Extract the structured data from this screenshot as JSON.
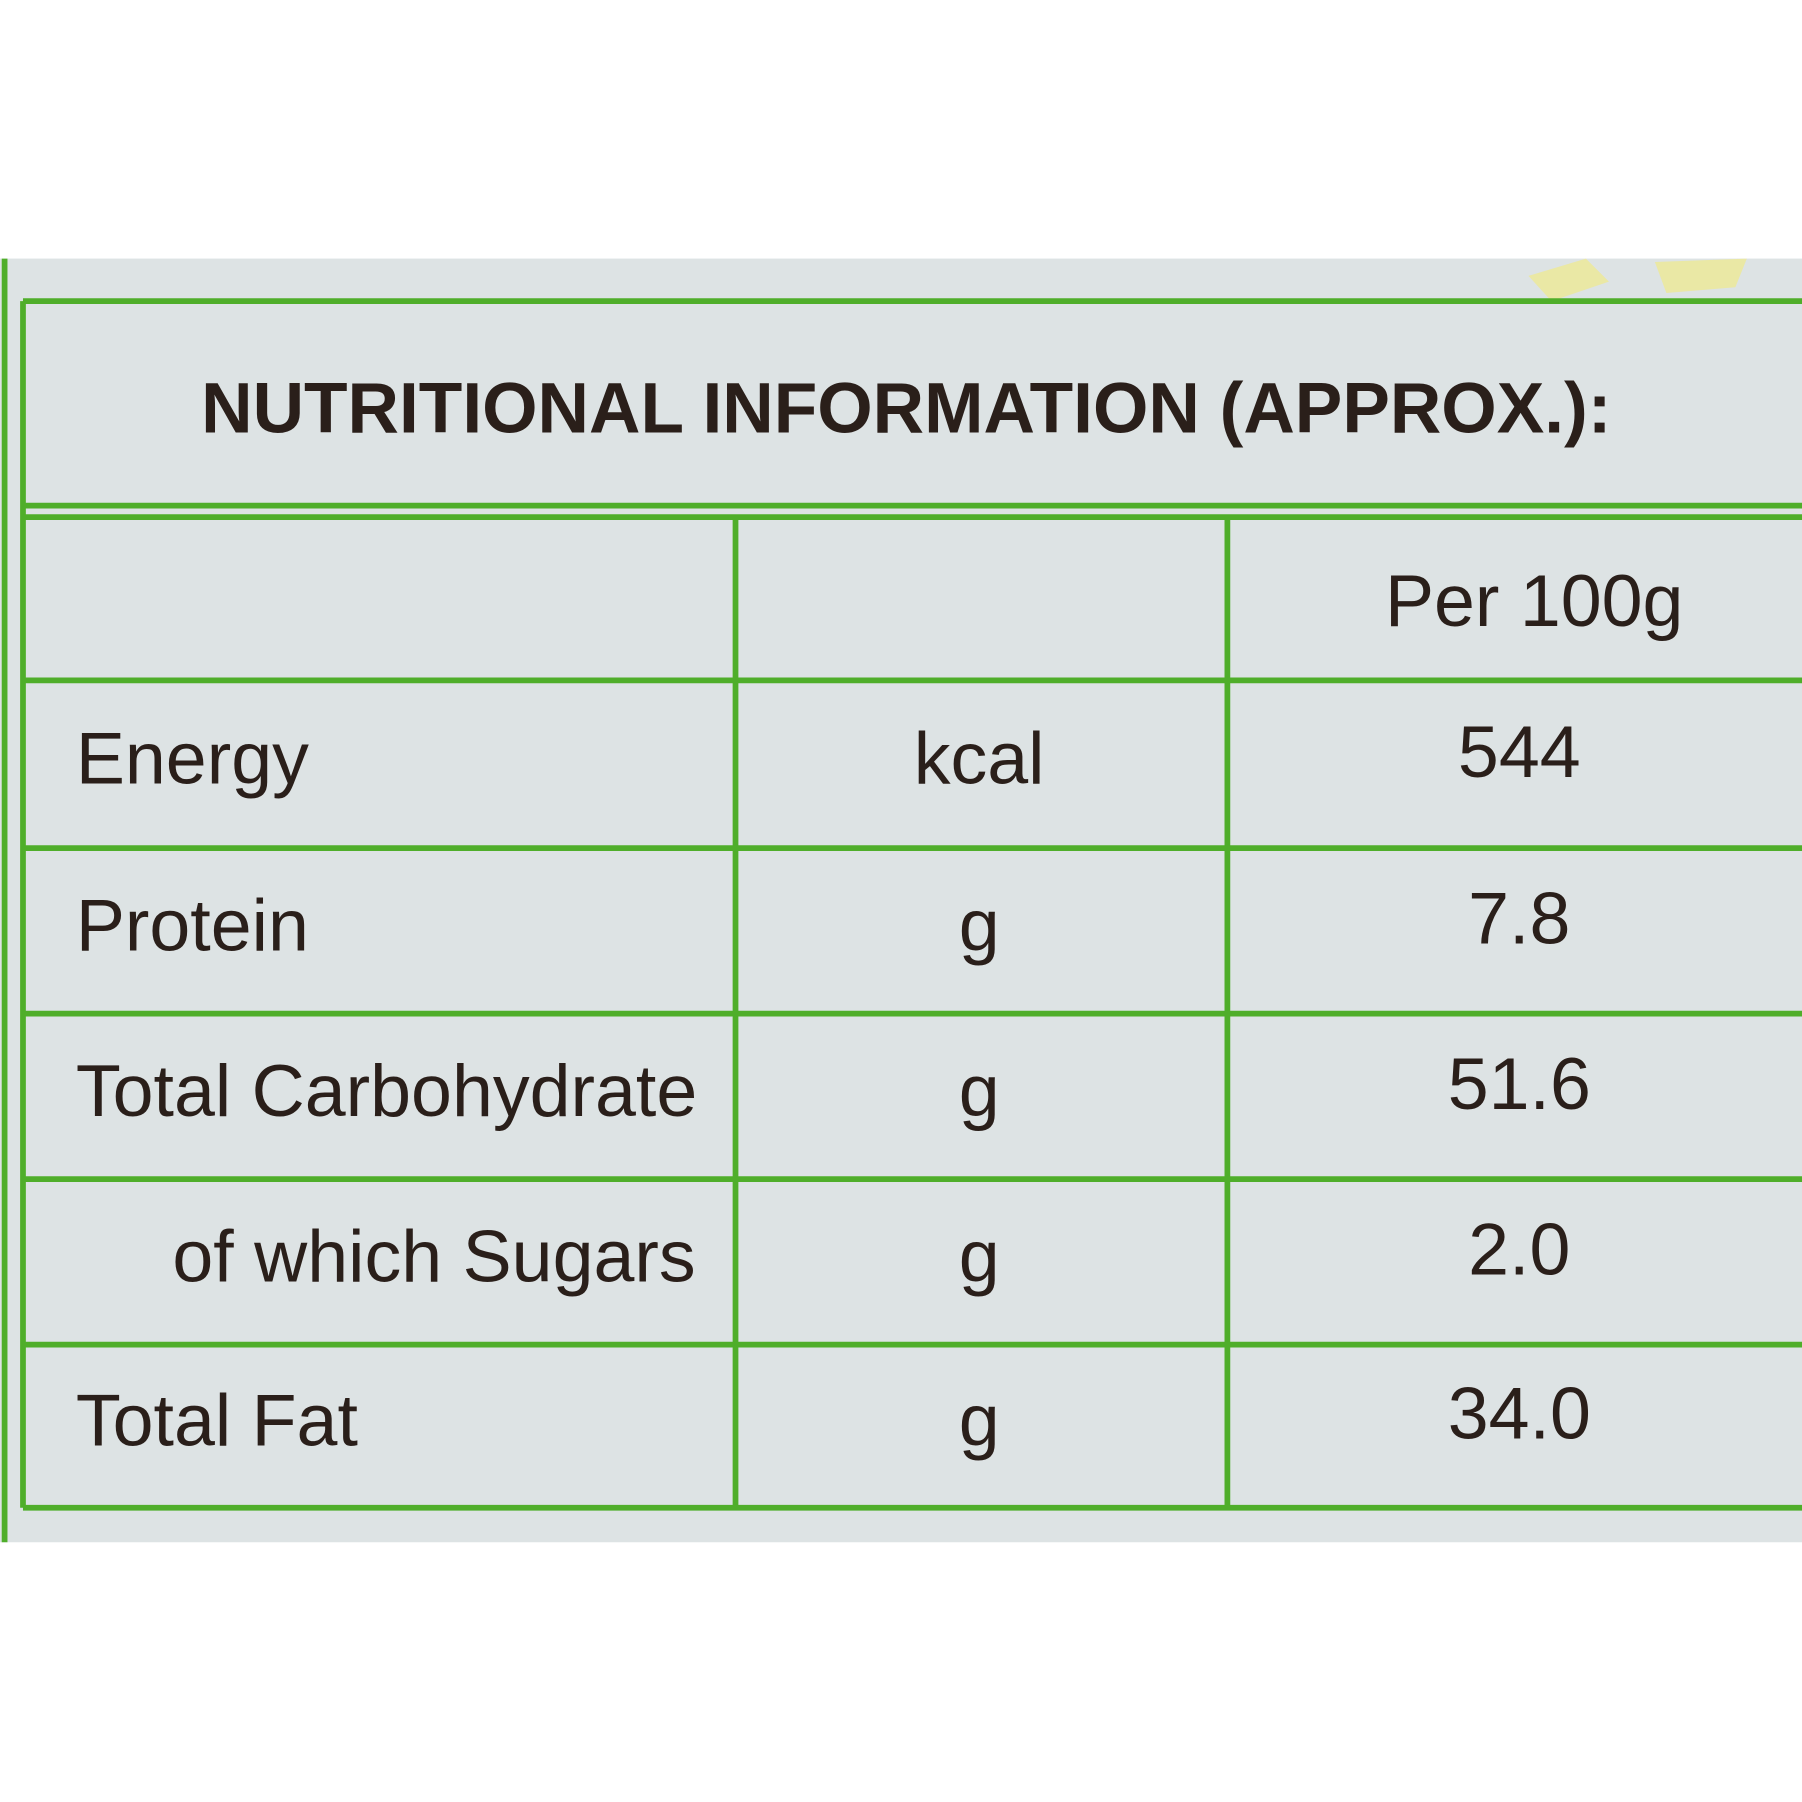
{
  "table": {
    "title": "NUTRITIONAL INFORMATION (APPROX.):",
    "header": "Per 100g",
    "rows": [
      [
        "Energy",
        "kcal",
        "544"
      ],
      [
        "Protein",
        "g",
        "7.8"
      ],
      [
        "Total Carbohydrate",
        "g",
        "51.6"
      ],
      [
        "of which Sugars",
        "g",
        "2.0"
      ],
      [
        "Total Fat",
        "g",
        "34.0"
      ]
    ]
  }
}
